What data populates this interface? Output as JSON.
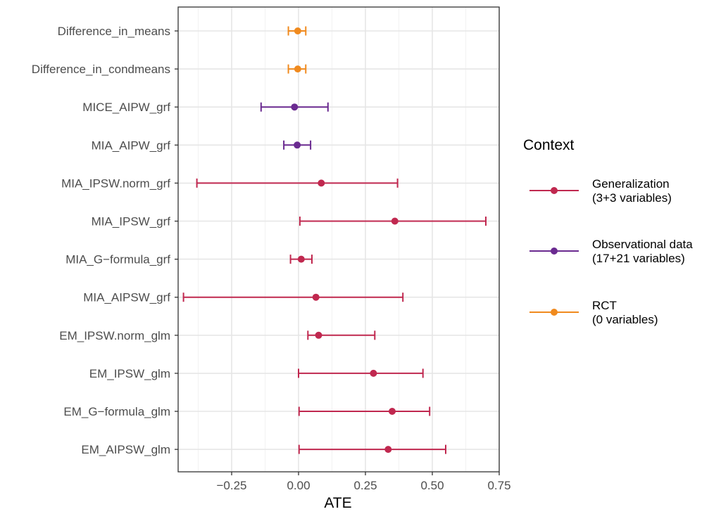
{
  "chart_data": {
    "type": "errorbar-dot",
    "xlabel": "ATE",
    "ylabel": "",
    "xlim": [
      -0.45,
      0.75
    ],
    "x_ticks": [
      -0.25,
      0,
      0.25,
      0.5,
      0.75
    ],
    "x_tick_labels": [
      "−0.25",
      "0.00",
      "0.25",
      "0.50",
      "0.75"
    ],
    "grid": true,
    "legend": {
      "title": "Context",
      "position": "right",
      "entries": [
        {
          "key": "generalization",
          "line1": "Generalization",
          "line2": "(3+3 variables)",
          "color": "#c0284f"
        },
        {
          "key": "observational",
          "line1": "Observational data",
          "line2": "(17+21 variables)",
          "color": "#6a2a90"
        },
        {
          "key": "rct",
          "line1": "RCT",
          "line2": "(0 variables)",
          "color": "#f08a1e"
        }
      ]
    },
    "rows": [
      {
        "label": "Difference_in_means",
        "context": "rct",
        "estimate": -0.003,
        "low": -0.038,
        "high": 0.027
      },
      {
        "label": "Difference_in_condmeans",
        "context": "rct",
        "estimate": -0.003,
        "low": -0.038,
        "high": 0.027
      },
      {
        "label": "MICE_AIPW_grf",
        "context": "observational",
        "estimate": -0.015,
        "low": -0.14,
        "high": 0.11
      },
      {
        "label": "MIA_AIPW_grf",
        "context": "observational",
        "estimate": -0.005,
        "low": -0.055,
        "high": 0.045
      },
      {
        "label": "MIA_IPSW.norm_grf",
        "context": "generalization",
        "estimate": 0.085,
        "low": -0.38,
        "high": 0.37
      },
      {
        "label": "MIA_IPSW_grf",
        "context": "generalization",
        "estimate": 0.36,
        "low": 0.005,
        "high": 0.7
      },
      {
        "label": "MIA_G−formula_grf",
        "context": "generalization",
        "estimate": 0.01,
        "low": -0.03,
        "high": 0.05
      },
      {
        "label": "MIA_AIPSW_grf",
        "context": "generalization",
        "estimate": 0.065,
        "low": -0.43,
        "high": 0.39
      },
      {
        "label": "EM_IPSW.norm_glm",
        "context": "generalization",
        "estimate": 0.075,
        "low": 0.035,
        "high": 0.285
      },
      {
        "label": "EM_IPSW_glm",
        "context": "generalization",
        "estimate": 0.28,
        "low": 0.0,
        "high": 0.465
      },
      {
        "label": "EM_G−formula_glm",
        "context": "generalization",
        "estimate": 0.35,
        "low": 0.002,
        "high": 0.49
      },
      {
        "label": "EM_AIPSW_glm",
        "context": "generalization",
        "estimate": 0.335,
        "low": 0.002,
        "high": 0.55
      }
    ]
  }
}
